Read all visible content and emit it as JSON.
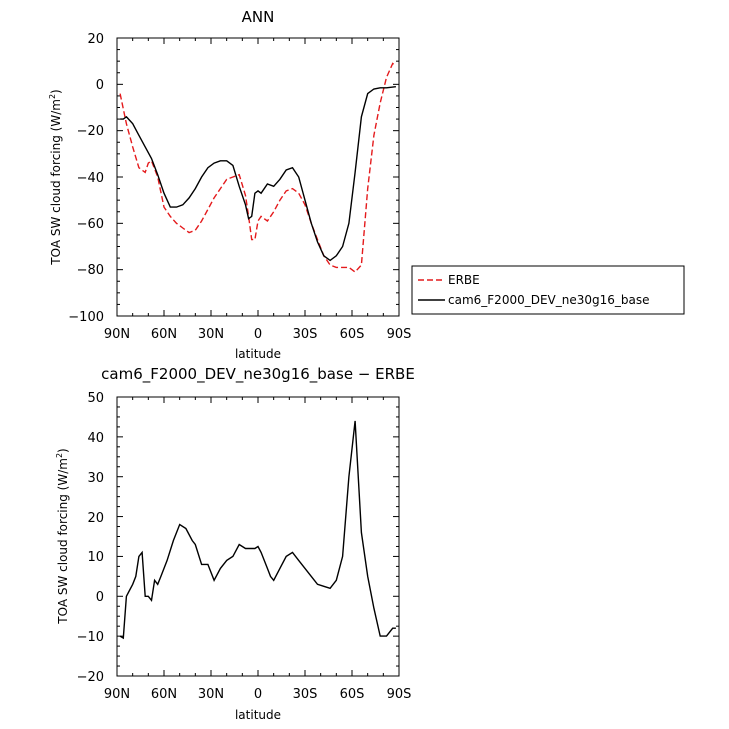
{
  "chart_data": [
    {
      "type": "line",
      "title": "ANN",
      "xlabel": "latitude",
      "ylabel": "TOA SW cloud forcing (W/m²)",
      "ylabel_pre": "TOA SW cloud forcing (W/m",
      "ylabel_sup": "2",
      "ylabel_post": ")",
      "xlim": [
        90,
        -90
      ],
      "ylim": [
        -100,
        20
      ],
      "x_ticks": [
        90,
        60,
        30,
        0,
        -30,
        -60,
        -90
      ],
      "x_tick_labels": [
        "90N",
        "60N",
        "30N",
        "0",
        "30S",
        "60S",
        "90S"
      ],
      "y_ticks": [
        20,
        0,
        -20,
        -40,
        -60,
        -80,
        -100
      ],
      "y_tick_labels": [
        "20",
        "0",
        "−20",
        "−40",
        "−60",
        "−80",
        "−100"
      ],
      "legend_position": "right",
      "series": [
        {
          "name": "ERBE",
          "color": "#e41a1c",
          "style": "dashed",
          "x": [
            88,
            84,
            80,
            76,
            72,
            70,
            68,
            64,
            60,
            56,
            52,
            48,
            44,
            40,
            36,
            32,
            28,
            24,
            20,
            16,
            12,
            8,
            6,
            4,
            2,
            0,
            -2,
            -6,
            -10,
            -14,
            -18,
            -22,
            -26,
            -30,
            -34,
            -38,
            -42,
            -46,
            -50,
            -54,
            -58,
            -62,
            -66,
            -70,
            -74,
            -78,
            -82,
            -86,
            -88
          ],
          "y": [
            -4,
            -17,
            -27,
            -36,
            -38,
            -34,
            -33,
            -40,
            -53,
            -57,
            -60,
            -62,
            -64,
            -63,
            -59,
            -54,
            -49,
            -45,
            -41,
            -40,
            -39,
            -48,
            -57,
            -67,
            -67,
            -59,
            -57,
            -59,
            -55,
            -50,
            -46,
            -45,
            -47,
            -52,
            -60,
            -67,
            -74,
            -78,
            -79,
            -79,
            -79,
            -81,
            -78,
            -45,
            -22,
            -8,
            3,
            9,
            8
          ]
        },
        {
          "name": "cam6_F2000_DEV_ne30g16_base",
          "color": "#000000",
          "style": "solid",
          "x": [
            88,
            86,
            84,
            80,
            76,
            72,
            68,
            64,
            60,
            56,
            52,
            48,
            44,
            40,
            36,
            32,
            28,
            24,
            20,
            16,
            12,
            8,
            6,
            4,
            2,
            0,
            -2,
            -6,
            -10,
            -14,
            -18,
            -22,
            -26,
            -30,
            -34,
            -38,
            -42,
            -46,
            -50,
            -54,
            -58,
            -62,
            -66,
            -70,
            -74,
            -78,
            -82,
            -86,
            -88
          ],
          "y": [
            -15,
            -15,
            -14,
            -17,
            -22,
            -27,
            -32,
            -39,
            -47,
            -53,
            -53,
            -52,
            -49,
            -45,
            -40,
            -36,
            -34,
            -33,
            -33,
            -35,
            -44,
            -52,
            -58,
            -57,
            -47,
            -46,
            -47,
            -43,
            -44,
            -41,
            -37,
            -36,
            -40,
            -50,
            -60,
            -68,
            -74,
            -76,
            -74,
            -70,
            -60,
            -38,
            -14,
            -4,
            -2,
            -1.5,
            -1.5,
            -1.2,
            -1
          ]
        }
      ]
    },
    {
      "type": "line",
      "title": "cam6_F2000_DEV_ne30g16_base − ERBE",
      "xlabel": "latitude",
      "ylabel": "TOA SW cloud forcing (W/m²)",
      "ylabel_pre": "TOA SW cloud forcing (W/m",
      "ylabel_sup": "2",
      "ylabel_post": ")",
      "xlim": [
        90,
        -90
      ],
      "ylim": [
        -20,
        50
      ],
      "x_ticks": [
        90,
        60,
        30,
        0,
        -30,
        -60,
        -90
      ],
      "x_tick_labels": [
        "90N",
        "60N",
        "30N",
        "0",
        "30S",
        "60S",
        "90S"
      ],
      "y_ticks": [
        50,
        40,
        30,
        20,
        10,
        0,
        -10,
        -20
      ],
      "y_tick_labels": [
        "50",
        "40",
        "30",
        "20",
        "10",
        "0",
        "−10",
        "−20"
      ],
      "series": [
        {
          "color": "#000000",
          "style": "solid",
          "x": [
            88,
            86,
            84,
            80,
            78,
            76,
            74,
            72,
            70,
            68,
            66,
            64,
            62,
            58,
            54,
            50,
            46,
            42,
            40,
            36,
            32,
            28,
            24,
            20,
            16,
            12,
            8,
            4,
            2,
            0,
            -2,
            -6,
            -8,
            -10,
            -14,
            -18,
            -22,
            -26,
            -30,
            -34,
            -38,
            -42,
            -46,
            -50,
            -54,
            -58,
            -62,
            -66,
            -70,
            -74,
            -78,
            -82,
            -86,
            -88
          ],
          "y": [
            -10,
            -10.5,
            0,
            3,
            5,
            10,
            11,
            0,
            0,
            -1,
            4,
            3,
            5,
            9,
            14,
            18,
            17,
            14,
            13,
            8,
            8,
            4,
            7,
            9,
            10,
            13,
            12,
            12,
            12,
            12.5,
            11,
            7,
            5,
            4,
            7,
            10,
            11,
            9,
            7,
            5,
            3,
            2.5,
            2,
            4,
            10,
            30,
            44,
            16,
            5,
            -3,
            -10,
            -10,
            -8,
            -8
          ]
        }
      ]
    }
  ]
}
